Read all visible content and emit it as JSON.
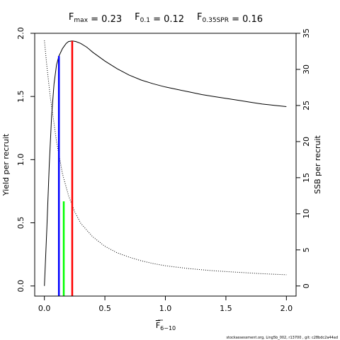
{
  "chart_data": {
    "type": "line",
    "title_parts": [
      {
        "base": "F",
        "sub": "max",
        "value": " = 0.23"
      },
      {
        "base": "F",
        "sub": "0.1",
        "value": " = 0.12"
      },
      {
        "base": "F",
        "sub": "0.35SPR",
        "value": " = 0.16"
      }
    ],
    "xlabel": {
      "base": "F",
      "sub": "6−10"
    },
    "ylabel_left": "Yield per recruit",
    "ylabel_right": "SSB per recruit",
    "xlim": [
      -0.08,
      2.08
    ],
    "ylim_left": [
      -0.08,
      2.0
    ],
    "ylim_right": [
      -1.4,
      35
    ],
    "x_ticks": [
      0.0,
      0.5,
      1.0,
      1.5,
      2.0
    ],
    "x_tick_labels": [
      "0.0",
      "0.5",
      "1.0",
      "1.5",
      "2.0"
    ],
    "y_left_ticks": [
      0.0,
      0.5,
      1.0,
      1.5,
      2.0
    ],
    "y_left_tick_labels": [
      "0.0",
      "0.5",
      "1.0",
      "1.5",
      "2.0"
    ],
    "y_right_ticks": [
      0,
      5,
      10,
      15,
      20,
      25,
      30,
      35
    ],
    "y_right_tick_labels": [
      "0",
      "5",
      "10",
      "15",
      "20",
      "25",
      "30",
      "35"
    ],
    "grid": false,
    "series": [
      {
        "axis": "left",
        "style": "solid",
        "color": "#000000",
        "x": [
          0.0,
          0.02,
          0.04,
          0.06,
          0.08,
          0.1,
          0.12,
          0.15,
          0.18,
          0.2,
          0.23,
          0.26,
          0.3,
          0.35,
          0.4,
          0.5,
          0.6,
          0.7,
          0.8,
          0.9,
          1.0,
          1.1,
          1.2,
          1.3,
          1.4,
          1.5,
          1.6,
          1.7,
          1.8,
          1.9,
          2.0
        ],
        "y": [
          0.0,
          0.45,
          0.95,
          1.35,
          1.6,
          1.75,
          1.82,
          1.88,
          1.92,
          1.935,
          1.94,
          1.935,
          1.92,
          1.89,
          1.85,
          1.78,
          1.72,
          1.67,
          1.63,
          1.6,
          1.575,
          1.555,
          1.535,
          1.515,
          1.5,
          1.485,
          1.47,
          1.455,
          1.44,
          1.43,
          1.42
        ]
      },
      {
        "axis": "right",
        "style": "dotted",
        "color": "#000000",
        "x": [
          0.0,
          0.02,
          0.05,
          0.08,
          0.1,
          0.12,
          0.15,
          0.2,
          0.25,
          0.3,
          0.4,
          0.5,
          0.6,
          0.7,
          0.8,
          0.9,
          1.0,
          1.2,
          1.4,
          1.6,
          1.8,
          2.0
        ],
        "y": [
          34.0,
          30.5,
          26.0,
          22.5,
          20.0,
          18.2,
          15.5,
          12.5,
          10.3,
          8.7,
          6.8,
          5.5,
          4.6,
          4.0,
          3.5,
          3.1,
          2.8,
          2.4,
          2.1,
          1.9,
          1.7,
          1.55
        ]
      }
    ],
    "reference_lines": [
      {
        "color": "#0000ff",
        "x": 0.12,
        "y": 1.82
      },
      {
        "color": "#00ff00",
        "x": 0.16,
        "y": 0.67
      },
      {
        "color": "#ff0000",
        "x": 0.23,
        "y": 1.94
      }
    ],
    "footer": "stockassessment.org, Ling5b_002, r13700 , git: c28bdc2a44ad"
  }
}
